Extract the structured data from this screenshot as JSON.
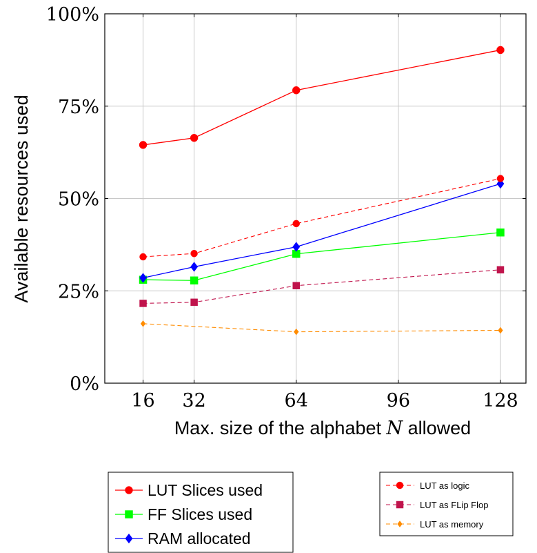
{
  "chart_data": {
    "type": "line",
    "xlabel_prefix": "Max. size of the alphabet ",
    "xlabel_var": "N",
    "xlabel_suffix": " allowed",
    "ylabel": "Available resources used",
    "x_ticks": [
      16,
      32,
      64,
      96,
      128
    ],
    "x_tick_labels": [
      "16",
      "32",
      "64",
      "96",
      "128"
    ],
    "xlim": [
      4,
      136
    ],
    "y_ticks": [
      0,
      25,
      50,
      75,
      100
    ],
    "y_tick_labels": [
      "0%",
      "25%",
      "50%",
      "75%",
      "100%"
    ],
    "ylim": [
      0,
      100
    ],
    "grid": true,
    "x": [
      16,
      32,
      64,
      128
    ],
    "series": [
      {
        "name": "LUT Slices used",
        "values": [
          64.5,
          66.4,
          79.3,
          90.2
        ],
        "color": "#ff0000",
        "marker": "circle",
        "dashed": false,
        "legend": "main"
      },
      {
        "name": "FF Slices used",
        "values": [
          28.0,
          27.8,
          35.0,
          40.8
        ],
        "color": "#00ff00",
        "marker": "square",
        "dashed": false,
        "legend": "main"
      },
      {
        "name": "RAM allocated",
        "values": [
          28.5,
          31.5,
          36.9,
          54.0
        ],
        "color": "#0000ff",
        "marker": "diamond",
        "dashed": false,
        "legend": "main"
      },
      {
        "name": "LUT as logic",
        "values": [
          34.2,
          35.1,
          43.2,
          55.4
        ],
        "color": "#ff0000",
        "marker": "circle",
        "dashed": true,
        "legend": "small"
      },
      {
        "name": "LUT as FLip Flop",
        "values": [
          21.6,
          21.9,
          26.4,
          30.7
        ],
        "color": "#c0144c",
        "marker": "square",
        "dashed": true,
        "legend": "small"
      },
      {
        "name": "LUT as memory",
        "values": [
          16.1,
          null,
          13.9,
          14.3
        ],
        "color": "#ff8c00",
        "marker": "diamond",
        "dashed": true,
        "legend": "small"
      }
    ],
    "legend_main_position": "bottom-left",
    "legend_small_position": "bottom-right"
  }
}
